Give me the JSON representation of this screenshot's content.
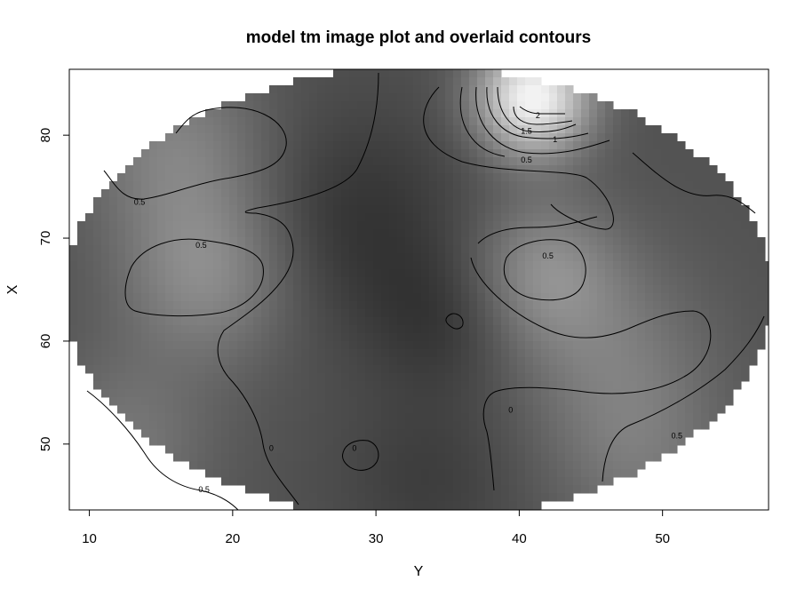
{
  "chart_data": {
    "type": "heatmap",
    "title": "model tm image plot and overlaid contours",
    "xlabel": "Y",
    "ylabel": "X",
    "xlim": [
      8.6,
      57.4
    ],
    "ylim": [
      43.6,
      86.4
    ],
    "xticks": [
      10,
      20,
      30,
      40,
      50
    ],
    "yticks": [
      50,
      60,
      70,
      80
    ],
    "grid": false,
    "legend": "none",
    "colormap": "grayscale",
    "colors": {
      "low": "#2e2e2e",
      "high": "#f2f2f2",
      "frame": "#000000"
    },
    "contour_levels": [
      0,
      0.5,
      1,
      1.5,
      2
    ],
    "contour_labels": [
      {
        "text": "2",
        "x": 41.3,
        "y": 81.9
      },
      {
        "text": "1.5",
        "x": 40.5,
        "y": 80.4
      },
      {
        "text": "1",
        "x": 42.5,
        "y": 79.6
      },
      {
        "text": "0.5",
        "x": 40.5,
        "y": 77.6
      },
      {
        "text": "0.5",
        "x": 13.5,
        "y": 73.5
      },
      {
        "text": "0.5",
        "x": 17.8,
        "y": 69.3
      },
      {
        "text": "0.5",
        "x": 42.0,
        "y": 68.3
      },
      {
        "text": "0",
        "x": 39.4,
        "y": 53.3
      },
      {
        "text": "0.5",
        "x": 51.0,
        "y": 50.8
      },
      {
        "text": "0",
        "x": 22.7,
        "y": 49.6
      },
      {
        "text": "0",
        "x": 28.5,
        "y": 49.6
      },
      {
        "text": "0.5",
        "x": 18.0,
        "y": 45.6
      }
    ]
  }
}
